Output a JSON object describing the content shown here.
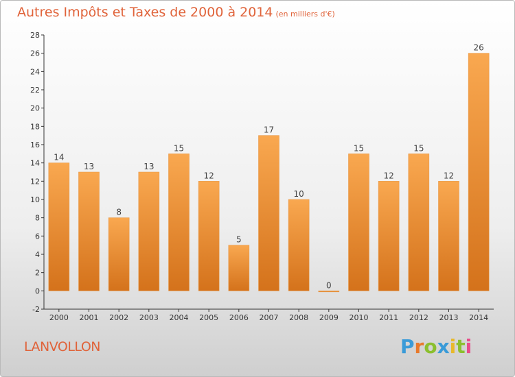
{
  "title": "Autres Impôts et Taxes de 2000 à 2014",
  "unit": "(en milliers d'€)",
  "place": "LANVOLLON",
  "brand": {
    "letters": [
      "P",
      "r",
      "o",
      "x",
      "i",
      "t",
      "i"
    ],
    "colors": [
      "#3a9bd8",
      "#e8792b",
      "#8bbf2e",
      "#3a9bd8",
      "#e8b92b",
      "#8bbf2e",
      "#e84b8a"
    ]
  },
  "colors": {
    "text": "#e0633a",
    "bar_light": "#f7a54f",
    "bar_dark": "#d97a20",
    "axis": "#333333"
  },
  "chart_data": {
    "type": "bar",
    "title": "Autres Impôts et Taxes de 2000 à 2014",
    "categories": [
      "2000",
      "2001",
      "2002",
      "2003",
      "2004",
      "2005",
      "2006",
      "2007",
      "2008",
      "2009",
      "2010",
      "2011",
      "2012",
      "2013",
      "2014"
    ],
    "values": [
      14,
      13,
      8,
      13,
      15,
      12,
      5,
      17,
      10,
      0,
      15,
      12,
      15,
      12,
      26
    ],
    "ylim": [
      -2,
      28
    ],
    "yticks": [
      -2,
      0,
      2,
      4,
      6,
      8,
      10,
      12,
      14,
      16,
      18,
      20,
      22,
      24,
      26,
      28
    ],
    "grid": false,
    "xlabel": "",
    "ylabel": ""
  }
}
